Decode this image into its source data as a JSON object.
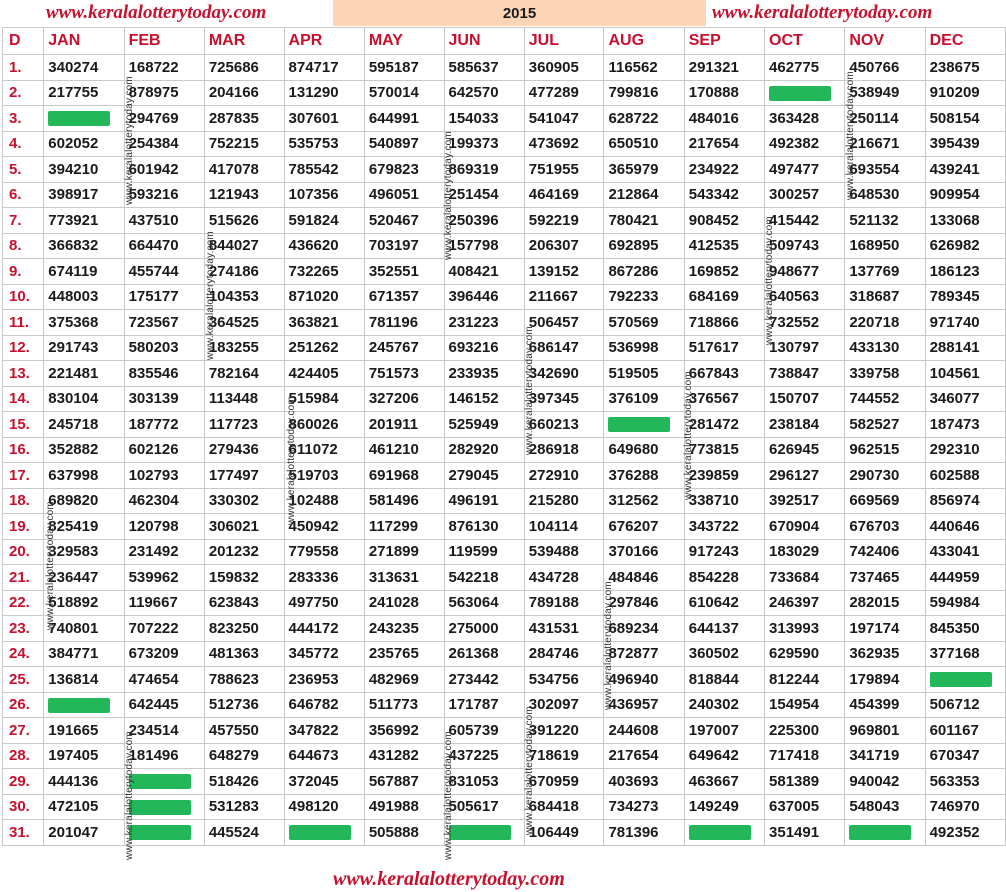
{
  "site": "www.keralalotterytoday.com",
  "year": "2015",
  "day_header": "D",
  "months": [
    "JAN",
    "FEB",
    "MAR",
    "APR",
    "MAY",
    "JUN",
    "JUL",
    "AUG",
    "SEP",
    "OCT",
    "NOV",
    "DEC"
  ],
  "days": [
    "1.",
    "2.",
    "3.",
    "4.",
    "5.",
    "6.",
    "7.",
    "8.",
    "9.",
    "10.",
    "11.",
    "12.",
    "13.",
    "14.",
    "15.",
    "16.",
    "17.",
    "18.",
    "19.",
    "20.",
    "21.",
    "22.",
    "23.",
    "24.",
    "25.",
    "26.",
    "27.",
    "28.",
    "29.",
    "30.",
    "31."
  ],
  "rows": [
    [
      "340274",
      "168722",
      "725686",
      "874717",
      "595187",
      "585637",
      "360905",
      "116562",
      "291321",
      "462775",
      "450766",
      "238675"
    ],
    [
      "217755",
      "878975",
      "204166",
      "131290",
      "570014",
      "642570",
      "477289",
      "799816",
      "170888",
      "",
      "538949",
      "910209"
    ],
    [
      "",
      "294769",
      "287835",
      "307601",
      "644991",
      "154033",
      "541047",
      "628722",
      "484016",
      "363428",
      "250114",
      "508154"
    ],
    [
      "602052",
      "254384",
      "752215",
      "535753",
      "540897",
      "199373",
      "473692",
      "650510",
      "217654",
      "492382",
      "216671",
      "395439"
    ],
    [
      "394210",
      "601942",
      "417078",
      "785542",
      "679823",
      "869319",
      "751955",
      "365979",
      "234922",
      "497477",
      "693554",
      "439241"
    ],
    [
      "398917",
      "593216",
      "121943",
      "107356",
      "496051",
      "251454",
      "464169",
      "212864",
      "543342",
      "300257",
      "648530",
      "909954"
    ],
    [
      "773921",
      "437510",
      "515626",
      "591824",
      "520467",
      "250396",
      "592219",
      "780421",
      "908452",
      "415442",
      "521132",
      "133068"
    ],
    [
      "366832",
      "664470",
      "844027",
      "436620",
      "703197",
      "157798",
      "206307",
      "692895",
      "412535",
      "509743",
      "168950",
      "626982"
    ],
    [
      "674119",
      "455744",
      "274186",
      "732265",
      "352551",
      "408421",
      "139152",
      "867286",
      "169852",
      "948677",
      "137769",
      "186123"
    ],
    [
      "448003",
      "175177",
      "104353",
      "871020",
      "671357",
      "396446",
      "211667",
      "792233",
      "684169",
      "640563",
      "318687",
      "789345"
    ],
    [
      "375368",
      "723567",
      "364525",
      "363821",
      "781196",
      "231223",
      "506457",
      "570569",
      "718866",
      "732552",
      "220718",
      "971740"
    ],
    [
      "291743",
      "580203",
      "183255",
      "251262",
      "245767",
      "693216",
      "686147",
      "536998",
      "517617",
      "130797",
      "433130",
      "288141"
    ],
    [
      "221481",
      "835546",
      "782164",
      "424405",
      "751573",
      "233935",
      "342690",
      "519505",
      "667843",
      "738847",
      "339758",
      "104561"
    ],
    [
      "830104",
      "303139",
      "113448",
      "515984",
      "327206",
      "146152",
      "397345",
      "376109",
      "376567",
      "150707",
      "744552",
      "346077"
    ],
    [
      "245718",
      "187772",
      "117723",
      "860026",
      "201911",
      "525949",
      "660213",
      "",
      "281472",
      "238184",
      "582527",
      "187473"
    ],
    [
      "352882",
      "602126",
      "279436",
      "611072",
      "461210",
      "282920",
      "286918",
      "649680",
      "773815",
      "626945",
      "962515",
      "292310"
    ],
    [
      "637998",
      "102793",
      "177497",
      "519703",
      "691968",
      "279045",
      "272910",
      "376288",
      "239859",
      "296127",
      "290730",
      "602588"
    ],
    [
      "689820",
      "462304",
      "330302",
      "102488",
      "581496",
      "496191",
      "215280",
      "312562",
      "338710",
      "392517",
      "669569",
      "856974"
    ],
    [
      "825419",
      "120798",
      "306021",
      "450942",
      "117299",
      "876130",
      "104114",
      "676207",
      "343722",
      "670904",
      "676703",
      "440646"
    ],
    [
      "329583",
      "231492",
      "201232",
      "779558",
      "271899",
      "119599",
      "539488",
      "370166",
      "917243",
      "183029",
      "742406",
      "433041"
    ],
    [
      "236447",
      "539962",
      "159832",
      "283336",
      "313631",
      "542218",
      "434728",
      "484846",
      "854228",
      "733684",
      "737465",
      "444959"
    ],
    [
      "518892",
      "119667",
      "623843",
      "497750",
      "241028",
      "563064",
      "789188",
      "297846",
      "610642",
      "246397",
      "282015",
      "594984"
    ],
    [
      "740801",
      "707222",
      "823250",
      "444172",
      "243235",
      "275000",
      "431531",
      "689234",
      "644137",
      "313993",
      "197174",
      "845350"
    ],
    [
      "384771",
      "673209",
      "481363",
      "345772",
      "235765",
      "261368",
      "284746",
      "872877",
      "360502",
      "629590",
      "362935",
      "377168"
    ],
    [
      "136814",
      "474654",
      "788623",
      "236953",
      "482969",
      "273442",
      "534756",
      "496940",
      "818844",
      "812244",
      "179894",
      ""
    ],
    [
      "",
      "642445",
      "512736",
      "646782",
      "511773",
      "171787",
      "302097",
      "436957",
      "240302",
      "154954",
      "454399",
      "506712"
    ],
    [
      "191665",
      "234514",
      "457550",
      "347822",
      "356992",
      "605739",
      "391220",
      "244608",
      "197007",
      "225300",
      "969801",
      "601167"
    ],
    [
      "197405",
      "181496",
      "648279",
      "644673",
      "431282",
      "437225",
      "718619",
      "217654",
      "649642",
      "717418",
      "341719",
      "670347"
    ],
    [
      "444136",
      "",
      "518426",
      "372045",
      "567887",
      "831053",
      "670959",
      "403693",
      "463667",
      "581389",
      "940042",
      "563353"
    ],
    [
      "472105",
      "",
      "531283",
      "498120",
      "491988",
      "505617",
      "684418",
      "734273",
      "149249",
      "637005",
      "548043",
      "746970"
    ],
    [
      "201047",
      "",
      "445524",
      "",
      "505888",
      "",
      "106449",
      "781396",
      "",
      "351491",
      "",
      "492352"
    ]
  ],
  "masked_cells": [
    [
      1,
      9
    ],
    [
      2,
      0
    ],
    [
      14,
      7
    ],
    [
      24,
      11
    ],
    [
      25,
      0
    ],
    [
      28,
      1
    ],
    [
      29,
      1
    ],
    [
      30,
      1
    ],
    [
      30,
      3
    ],
    [
      30,
      5
    ],
    [
      30,
      8
    ],
    [
      30,
      10
    ]
  ],
  "colors": {
    "accent_red": "#c8102e",
    "header_band": "#fbd5b5",
    "mask_green": "#22b85a",
    "grid": "#c9c9c9"
  }
}
